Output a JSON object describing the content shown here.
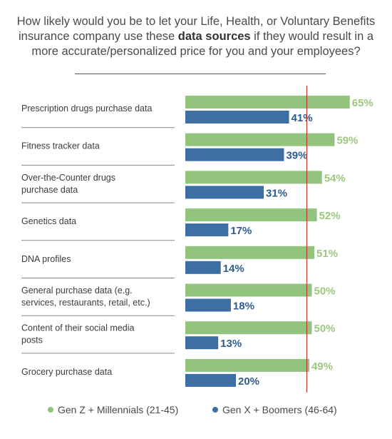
{
  "title": {
    "before": "How likely would you be to let your Life, Health, or Voluntary Benefits insurance company use these ",
    "bold": "data sources",
    "after": " if they would result in a more accurate/personalized price for you and your employees?"
  },
  "colors": {
    "genz": "#92c47d",
    "genx": "#3d6fa5",
    "genz_label": "#9cc87e",
    "genx_label": "#2f5b8e",
    "reference_line": "#c0392b",
    "divider": "#8a8a8a"
  },
  "legend": [
    {
      "label": "Gen Z  +  Millennials (21-45)",
      "color": "#92c47d"
    },
    {
      "label": "Gen X  + Boomers (46-64)",
      "color": "#3d6fa5"
    }
  ],
  "chart_data": {
    "type": "bar",
    "orientation": "horizontal",
    "categories": [
      [
        "Prescription drugs purchase data"
      ],
      [
        "Fitness tracker data"
      ],
      [
        "Over-the-Counter drugs",
        "purchase data"
      ],
      [
        "Genetics data"
      ],
      [
        "DNA profiles"
      ],
      [
        "General purchase data (e.g.",
        "services, restaurants, retail, etc.)"
      ],
      [
        "Content of their social media",
        "posts"
      ],
      [
        "Grocery purchase data"
      ]
    ],
    "series": [
      {
        "name": "Gen Z  +  Millennials (21-45)",
        "values": [
          65,
          59,
          54,
          52,
          51,
          50,
          50,
          49
        ]
      },
      {
        "name": "Gen X  + Boomers (46-64)",
        "values": [
          41,
          39,
          31,
          17,
          14,
          18,
          13,
          20
        ]
      }
    ],
    "value_suffix": "%",
    "xlim": [
      0,
      100
    ],
    "reference_line_value": 50,
    "legend_position": "bottom"
  }
}
